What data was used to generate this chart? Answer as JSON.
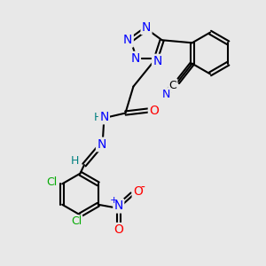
{
  "bg_color": "#e8e8e8",
  "bond_color": "#000000",
  "bond_width": 1.5,
  "font_size_atom": 9,
  "colors": {
    "N": "#0000ff",
    "O": "#ff0000",
    "Cl": "#00aa00",
    "H": "#008080",
    "C_label": "#000000"
  },
  "figsize": [
    3.0,
    3.0
  ],
  "dpi": 100
}
